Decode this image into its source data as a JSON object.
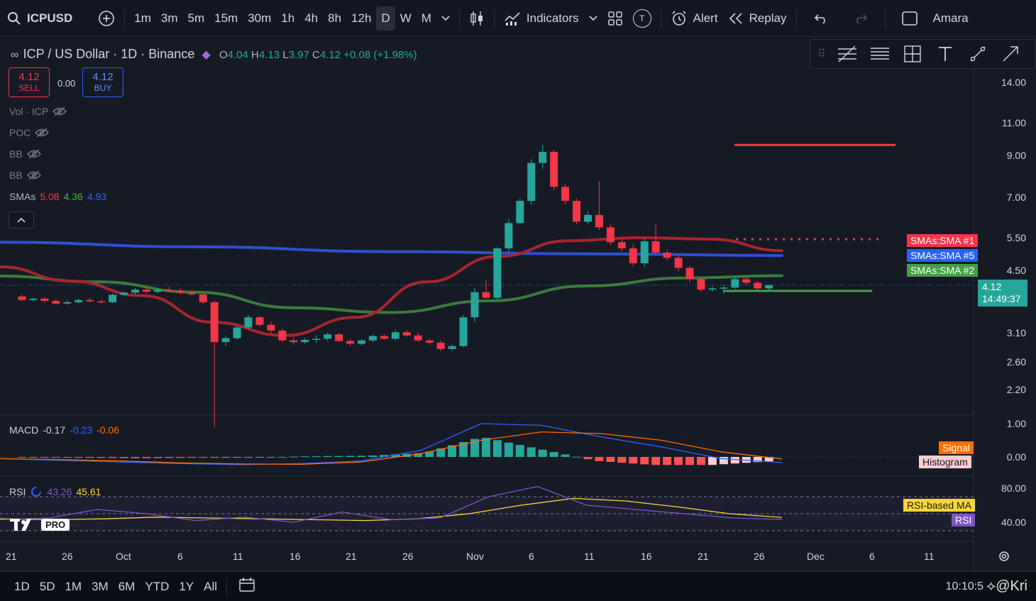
{
  "topbar": {
    "symbol": "ICPUSD",
    "timeframes": [
      "1m",
      "3m",
      "5m",
      "15m",
      "30m",
      "1h",
      "4h",
      "8h",
      "12h",
      "D",
      "W",
      "M"
    ],
    "active_timeframe": "D",
    "indicators_label": "Indicators",
    "alert_label": "Alert",
    "replay_label": "Replay",
    "user_label": "Amara",
    "t_badge": "T"
  },
  "legend": {
    "title": "ICP / US Dollar · 1D · Binance",
    "o_label": "O",
    "o_value": "4.04",
    "h_label": "H",
    "h_value": "4.13",
    "l_label": "L",
    "l_value": "3.97",
    "c_label": "C",
    "c_value": "4.12",
    "change": "+0.08 (+1.98%)",
    "sell_price": "4.12",
    "sell_label": "SELL",
    "spread": "0.00",
    "buy_price": "4.12",
    "buy_label": "BUY",
    "vol": "Vol · ICP",
    "poc": "POC",
    "bb1": "BB",
    "bb2": "BB",
    "smas_label": "SMAs",
    "sma1": "5.08",
    "sma2": "4.36",
    "sma3": "4.93"
  },
  "price_axis": [
    "14.00",
    "11.00",
    "9.00",
    "7.00",
    "5.50",
    "4.50",
    "3.10",
    "2.60",
    "2.20"
  ],
  "current_price": "4.12",
  "countdown": "14:49:37",
  "sma_tags": [
    "SMAs:SMA #1",
    "SMAs:SMA #5",
    "SMAs:SMA #2"
  ],
  "macd": {
    "label": "MACD",
    "v1": "-0.17",
    "v2": "-0.23",
    "v3": "-0.06",
    "axis": [
      "1.00",
      "0.00"
    ],
    "tags": [
      "Signal",
      "Histogram"
    ]
  },
  "rsi": {
    "label": "RSI",
    "v1": "43.26",
    "v2": "45.61",
    "axis": [
      "80.00",
      "40.00"
    ],
    "tags": [
      "RSI-based MA",
      "RSI"
    ]
  },
  "time_axis": [
    "21",
    "26",
    "Oct",
    "6",
    "11",
    "16",
    "21",
    "26",
    "Nov",
    "6",
    "11",
    "16",
    "21",
    "26",
    "Dec",
    "6",
    "11"
  ],
  "bottombar": {
    "ranges": [
      "1D",
      "5D",
      "1M",
      "3M",
      "6M",
      "YTD",
      "1Y",
      "All"
    ],
    "clock": "10:10:5",
    "watermark": "@Kri",
    "pro_badge": "PRO"
  },
  "colors": {
    "up": "#26a69a",
    "down": "#f23645",
    "sma_red": "#b22833",
    "sma_blue": "#2962ff",
    "sma_green": "#3f8f3f"
  },
  "chart_data": {
    "type": "candlestick",
    "candles_ohlc": [
      [
        3.85,
        3.9,
        3.74,
        3.77
      ],
      [
        3.77,
        3.82,
        3.74,
        3.8
      ],
      [
        3.8,
        3.84,
        3.72,
        3.75
      ],
      [
        3.75,
        3.79,
        3.66,
        3.69
      ],
      [
        3.69,
        3.76,
        3.66,
        3.72
      ],
      [
        3.72,
        3.8,
        3.7,
        3.77
      ],
      [
        3.77,
        3.82,
        3.72,
        3.74
      ],
      [
        3.74,
        3.78,
        3.69,
        3.72
      ],
      [
        3.72,
        3.92,
        3.7,
        3.89
      ],
      [
        3.89,
        3.97,
        3.85,
        3.94
      ],
      [
        3.94,
        4.05,
        3.9,
        4.01
      ],
      [
        4.01,
        4.08,
        3.91,
        3.96
      ],
      [
        3.96,
        4.05,
        3.92,
        4.0
      ],
      [
        4.0,
        4.08,
        3.96,
        3.99
      ],
      [
        3.99,
        4.04,
        3.9,
        3.94
      ],
      [
        3.94,
        3.97,
        3.86,
        3.9
      ],
      [
        3.9,
        3.93,
        3.68,
        3.72
      ],
      [
        3.72,
        3.76,
        1.75,
        2.93
      ],
      [
        2.93,
        3.05,
        2.86,
        3.0
      ],
      [
        3.0,
        3.25,
        2.97,
        3.2
      ],
      [
        3.2,
        3.45,
        3.17,
        3.4
      ],
      [
        3.4,
        3.43,
        3.22,
        3.25
      ],
      [
        3.25,
        3.31,
        3.08,
        3.14
      ],
      [
        3.14,
        3.18,
        2.92,
        2.96
      ],
      [
        2.96,
        3.03,
        2.88,
        2.93
      ],
      [
        2.93,
        3.01,
        2.9,
        2.97
      ],
      [
        2.97,
        3.05,
        2.92,
        2.99
      ],
      [
        2.99,
        3.1,
        2.95,
        3.07
      ],
      [
        3.07,
        3.09,
        2.93,
        2.95
      ],
      [
        2.95,
        2.99,
        2.86,
        2.9
      ],
      [
        2.9,
        2.98,
        2.87,
        2.96
      ],
      [
        2.96,
        3.07,
        2.93,
        3.04
      ],
      [
        3.04,
        3.07,
        2.97,
        2.99
      ],
      [
        2.99,
        3.15,
        2.96,
        3.11
      ],
      [
        3.11,
        3.15,
        3.02,
        3.05
      ],
      [
        3.05,
        3.1,
        2.93,
        2.96
      ],
      [
        2.96,
        2.99,
        2.88,
        2.92
      ],
      [
        2.92,
        2.96,
        2.77,
        2.81
      ],
      [
        2.81,
        2.89,
        2.78,
        2.86
      ],
      [
        2.86,
        3.45,
        2.84,
        3.4
      ],
      [
        3.4,
        4.05,
        3.3,
        3.95
      ],
      [
        3.95,
        4.25,
        3.8,
        3.82
      ],
      [
        3.82,
        5.2,
        3.78,
        5.15
      ],
      [
        5.15,
        6.15,
        5.05,
        6.0
      ],
      [
        6.0,
        6.95,
        5.95,
        6.85
      ],
      [
        6.85,
        8.8,
        6.7,
        8.6
      ],
      [
        8.6,
        9.6,
        8.3,
        9.2
      ],
      [
        9.2,
        9.3,
        7.3,
        7.45
      ],
      [
        7.45,
        7.6,
        6.7,
        6.85
      ],
      [
        6.85,
        6.95,
        5.95,
        6.05
      ],
      [
        6.05,
        6.45,
        5.95,
        6.3
      ],
      [
        6.3,
        7.7,
        5.75,
        5.85
      ],
      [
        5.85,
        5.95,
        5.25,
        5.35
      ],
      [
        5.35,
        5.5,
        5.05,
        5.15
      ],
      [
        5.15,
        5.3,
        4.6,
        4.7
      ],
      [
        4.7,
        5.5,
        4.6,
        5.38
      ],
      [
        5.38,
        5.95,
        4.97,
        5.02
      ],
      [
        5.02,
        5.12,
        4.78,
        4.86
      ],
      [
        4.86,
        4.94,
        4.47,
        4.57
      ],
      [
        4.57,
        4.62,
        4.18,
        4.27
      ],
      [
        4.27,
        4.3,
        3.96,
        4.01
      ],
      [
        4.01,
        4.09,
        3.96,
        4.04
      ],
      [
        4.04,
        4.12,
        3.92,
        4.06
      ],
      [
        4.06,
        4.36,
        4.02,
        4.27
      ],
      [
        4.27,
        4.32,
        4.13,
        4.18
      ],
      [
        4.18,
        4.23,
        3.97,
        4.04
      ],
      [
        4.04,
        4.13,
        3.97,
        4.12
      ]
    ],
    "sma1_red_values": [
      4.6,
      4.22,
      3.87,
      3.3,
      3.05,
      3.4,
      4.2,
      4.9,
      5.4,
      5.5,
      5.45,
      5.08
    ],
    "sma2_green_values": [
      4.35,
      4.2,
      3.95,
      3.6,
      3.5,
      3.75,
      4.1,
      4.3,
      4.36
    ],
    "sma5_blue_values": [
      5.35,
      5.2,
      5.05,
      4.98,
      4.93
    ],
    "horizontal_levels": [
      9.6,
      5.45,
      3.98
    ],
    "macd_values": [
      -0.05,
      -0.1,
      -0.15,
      -0.2,
      -0.23,
      -0.2,
      -0.12,
      0.2,
      1.0,
      0.95,
      0.6,
      0.3,
      -0.05,
      -0.17
    ],
    "signal_values": [
      -0.05,
      -0.08,
      -0.12,
      -0.18,
      -0.21,
      -0.22,
      -0.15,
      0.1,
      0.5,
      0.75,
      0.7,
      0.5,
      0.15,
      -0.06
    ],
    "rsi_values": [
      43,
      45,
      55,
      50,
      42,
      46,
      40,
      52,
      43,
      45,
      70,
      82,
      60,
      55,
      50,
      45,
      43.26
    ],
    "rsi_ma_values": [
      44,
      43,
      44,
      46,
      45,
      44,
      43,
      42,
      44,
      50,
      60,
      68,
      65,
      58,
      50,
      45.61
    ]
  }
}
